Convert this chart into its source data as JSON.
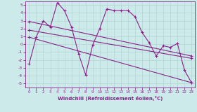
{
  "xlabel": "Windchill (Refroidissement éolien,°C)",
  "bg_color": "#cceaea",
  "grid_color": "#aed8d8",
  "line_color": "#882288",
  "xlim": [
    -0.5,
    23.5
  ],
  "ylim": [
    -5.5,
    5.5
  ],
  "yticks": [
    -5,
    -4,
    -3,
    -2,
    -1,
    0,
    1,
    2,
    3,
    4,
    5
  ],
  "xticks": [
    0,
    1,
    2,
    3,
    4,
    5,
    6,
    7,
    8,
    9,
    10,
    11,
    12,
    13,
    14,
    15,
    16,
    17,
    18,
    19,
    20,
    21,
    22,
    23
  ],
  "series1_x": [
    0,
    1,
    2,
    3,
    4,
    5,
    6,
    7,
    8,
    9,
    10,
    11,
    12,
    13,
    14,
    15,
    16,
    17,
    18,
    19,
    20,
    21,
    22,
    23
  ],
  "series1_y": [
    -2.5,
    0.9,
    3.0,
    2.2,
    5.3,
    4.3,
    2.2,
    -1.2,
    -3.9,
    -0.1,
    2.0,
    4.5,
    4.3,
    4.3,
    4.3,
    3.5,
    1.5,
    0.2,
    -1.5,
    -0.2,
    -0.4,
    0.1,
    -3.3,
    -4.9
  ],
  "series2_x": [
    0,
    23
  ],
  "series2_y": [
    2.9,
    -1.5
  ],
  "series3_x": [
    0,
    23
  ],
  "series3_y": [
    1.8,
    -1.8
  ],
  "series4_x": [
    0,
    23
  ],
  "series4_y": [
    0.9,
    -4.9
  ]
}
